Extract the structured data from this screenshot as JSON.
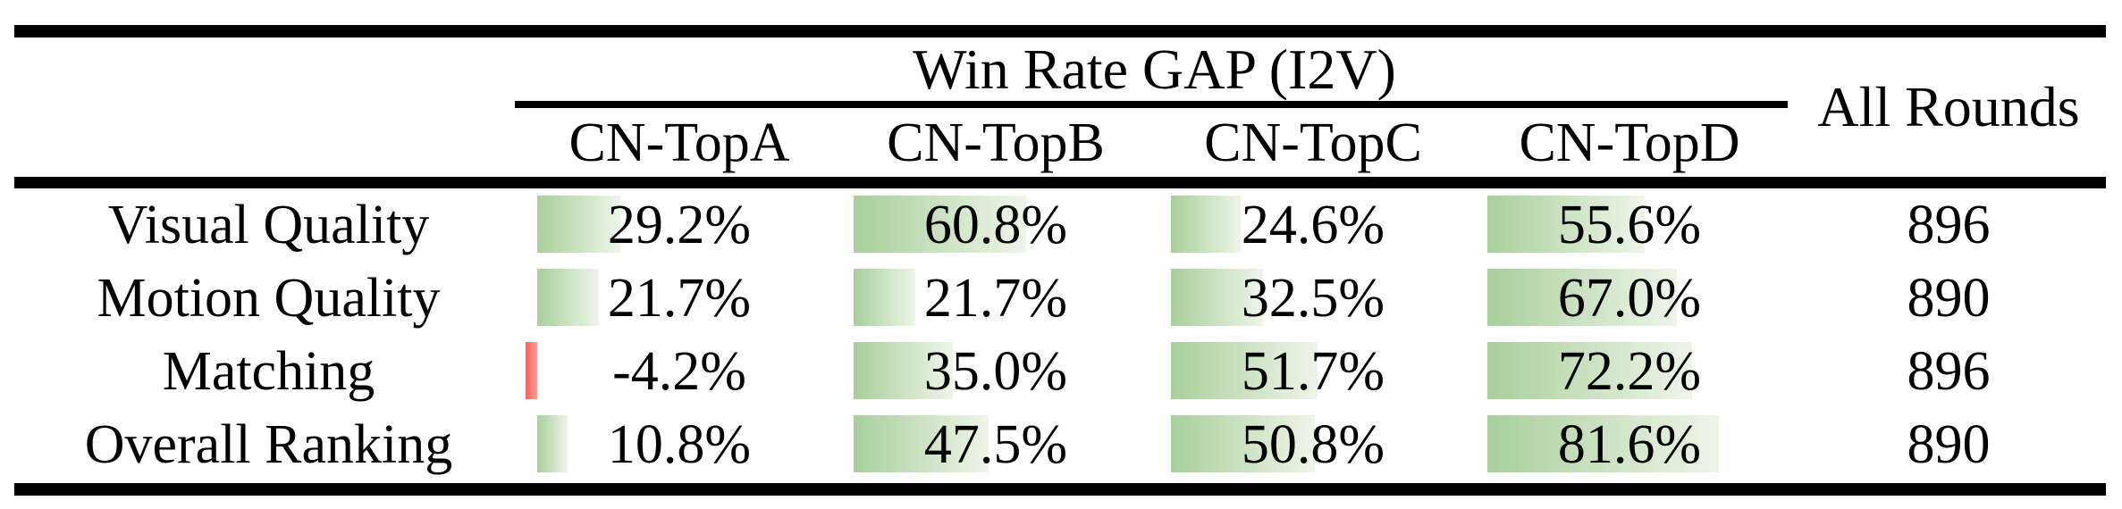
{
  "table": {
    "header": {
      "group_title": "Win Rate GAP (I2V)",
      "columns": [
        "CN-TopA",
        "CN-TopB",
        "CN-TopC",
        "CN-TopD"
      ],
      "all_rounds_label": "All Rounds"
    },
    "rows": [
      {
        "label": "Visual Quality",
        "cells": [
          {
            "display": "29.2%",
            "value": 29.2
          },
          {
            "display": "60.8%",
            "value": 60.8
          },
          {
            "display": "24.6%",
            "value": 24.6
          },
          {
            "display": "55.6%",
            "value": 55.6
          }
        ],
        "all_rounds": "896"
      },
      {
        "label": "Motion Quality",
        "cells": [
          {
            "display": "21.7%",
            "value": 21.7
          },
          {
            "display": "21.7%",
            "value": 21.7
          },
          {
            "display": "32.5%",
            "value": 32.5
          },
          {
            "display": "67.0%",
            "value": 67.0
          }
        ],
        "all_rounds": "890"
      },
      {
        "label": "Matching",
        "cells": [
          {
            "display": "-4.2%",
            "value": -4.2
          },
          {
            "display": "35.0%",
            "value": 35.0
          },
          {
            "display": "51.7%",
            "value": 51.7
          },
          {
            "display": "72.2%",
            "value": 72.2
          }
        ],
        "all_rounds": "896"
      },
      {
        "label": "Overall Ranking",
        "cells": [
          {
            "display": "10.8%",
            "value": 10.8
          },
          {
            "display": "47.5%",
            "value": 47.5
          },
          {
            "display": "50.8%",
            "value": 50.8
          },
          {
            "display": "81.6%",
            "value": 81.6
          }
        ],
        "all_rounds": "890"
      }
    ]
  },
  "colors": {
    "text": "#000000",
    "rule": "#000000",
    "bar_positive_start": "#a9cf9b",
    "bar_positive_end": "#eef5e9",
    "bar_negative_start": "#fa5e5e",
    "bar_negative_end": "#fc9d9d"
  },
  "chart_data": {
    "type": "table",
    "title": "Win Rate GAP (I2V)",
    "columns": [
      "CN-TopA",
      "CN-TopB",
      "CN-TopC",
      "CN-TopD",
      "All Rounds"
    ],
    "row_labels": [
      "Visual Quality",
      "Motion Quality",
      "Matching",
      "Overall Ranking"
    ],
    "win_rate_gap_percent": [
      [
        29.2,
        60.8,
        24.6,
        55.6
      ],
      [
        21.7,
        21.7,
        32.5,
        67.0
      ],
      [
        -4.2,
        35.0,
        51.7,
        72.2
      ],
      [
        10.8,
        47.5,
        50.8,
        81.6
      ]
    ],
    "all_rounds": [
      896,
      890,
      896,
      890
    ],
    "notes": "Cells contain left-aligned gradient data bars proportional to percentage; negative values shown with a red bar left of the baseline."
  }
}
